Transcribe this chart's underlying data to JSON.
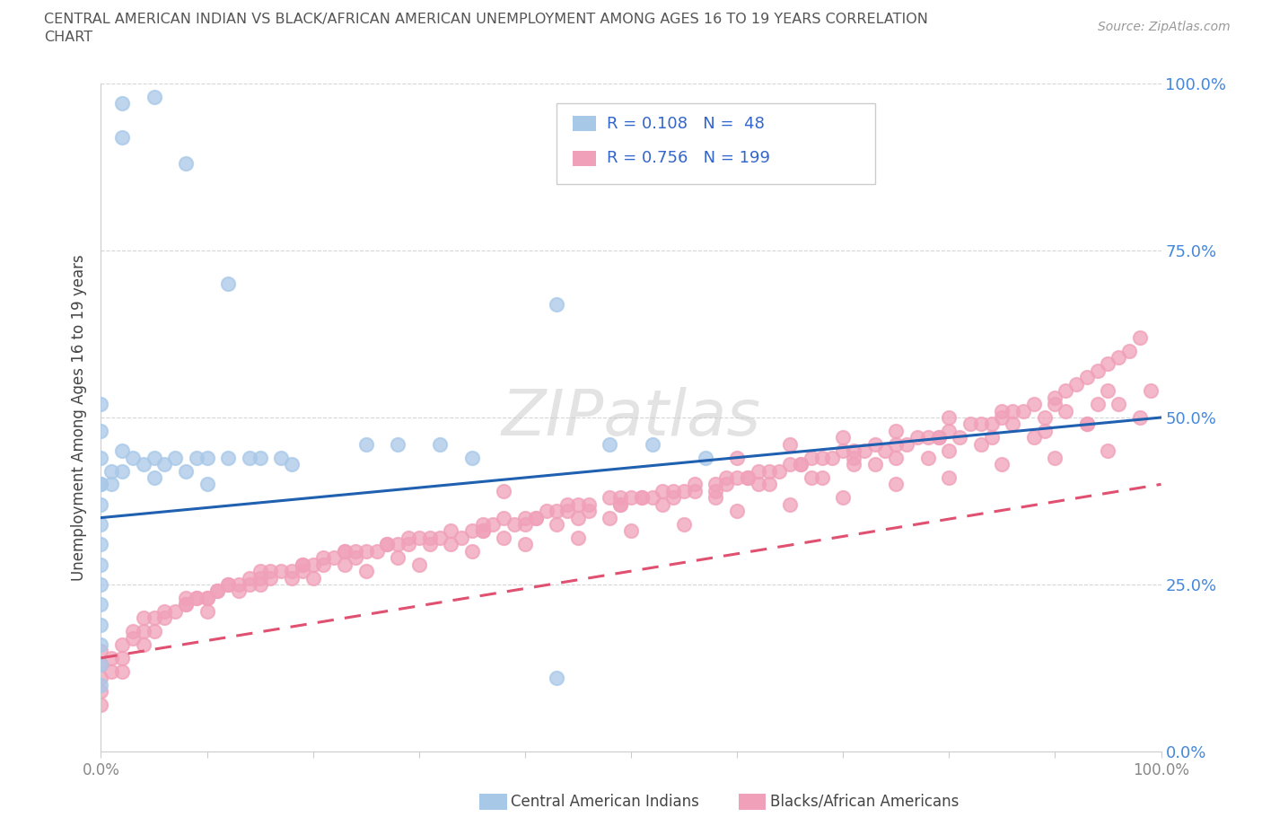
{
  "title_line1": "CENTRAL AMERICAN INDIAN VS BLACK/AFRICAN AMERICAN UNEMPLOYMENT AMONG AGES 16 TO 19 YEARS CORRELATION",
  "title_line2": "CHART",
  "source_text": "Source: ZipAtlas.com",
  "ylabel": "Unemployment Among Ages 16 to 19 years",
  "xlim": [
    0,
    1.0
  ],
  "ylim": [
    0,
    1.0
  ],
  "watermark_text": "ZIPatlas",
  "blue_color": "#a8c8e8",
  "pink_color": "#f0a0b8",
  "blue_line_color": "#2060b0",
  "pink_line_color": "#e05070",
  "blue_scatter_x": [
    0.02,
    0.02,
    0.05,
    0.08,
    0.0,
    0.0,
    0.0,
    0.0,
    0.0,
    0.0,
    0.0,
    0.0,
    0.0,
    0.0,
    0.0,
    0.0,
    0.0,
    0.0,
    0.0,
    0.01,
    0.01,
    0.02,
    0.02,
    0.03,
    0.04,
    0.05,
    0.05,
    0.06,
    0.07,
    0.08,
    0.09,
    0.1,
    0.1,
    0.12,
    0.14,
    0.15,
    0.17,
    0.18,
    0.25,
    0.28,
    0.32,
    0.35,
    0.43,
    0.48,
    0.52,
    0.43,
    0.12,
    0.57
  ],
  "blue_scatter_y": [
    0.97,
    0.92,
    0.98,
    0.88,
    0.52,
    0.48,
    0.44,
    0.4,
    0.37,
    0.34,
    0.31,
    0.28,
    0.25,
    0.22,
    0.19,
    0.16,
    0.13,
    0.1,
    0.4,
    0.42,
    0.4,
    0.45,
    0.42,
    0.44,
    0.43,
    0.44,
    0.41,
    0.43,
    0.44,
    0.42,
    0.44,
    0.44,
    0.4,
    0.44,
    0.44,
    0.44,
    0.44,
    0.43,
    0.46,
    0.46,
    0.46,
    0.44,
    0.11,
    0.46,
    0.46,
    0.67,
    0.7,
    0.44
  ],
  "pink_scatter_x": [
    0.0,
    0.0,
    0.0,
    0.0,
    0.0,
    0.01,
    0.01,
    0.02,
    0.02,
    0.02,
    0.03,
    0.04,
    0.04,
    0.05,
    0.06,
    0.07,
    0.08,
    0.09,
    0.1,
    0.1,
    0.11,
    0.12,
    0.13,
    0.14,
    0.15,
    0.16,
    0.17,
    0.18,
    0.19,
    0.2,
    0.21,
    0.22,
    0.23,
    0.24,
    0.25,
    0.27,
    0.28,
    0.29,
    0.3,
    0.31,
    0.33,
    0.35,
    0.36,
    0.37,
    0.38,
    0.4,
    0.41,
    0.42,
    0.43,
    0.44,
    0.45,
    0.46,
    0.48,
    0.49,
    0.5,
    0.51,
    0.52,
    0.53,
    0.55,
    0.56,
    0.58,
    0.59,
    0.6,
    0.61,
    0.62,
    0.63,
    0.65,
    0.66,
    0.67,
    0.68,
    0.7,
    0.71,
    0.72,
    0.73,
    0.75,
    0.77,
    0.78,
    0.79,
    0.8,
    0.82,
    0.83,
    0.85,
    0.86,
    0.87,
    0.88,
    0.9,
    0.91,
    0.92,
    0.93,
    0.94,
    0.95,
    0.96,
    0.97,
    0.98,
    0.38,
    0.05,
    0.08,
    0.12,
    0.15,
    0.19,
    0.23,
    0.27,
    0.32,
    0.36,
    0.4,
    0.45,
    0.49,
    0.54,
    0.58,
    0.62,
    0.67,
    0.71,
    0.75,
    0.8,
    0.84,
    0.89,
    0.93,
    0.6,
    0.65,
    0.7,
    0.75,
    0.8,
    0.85,
    0.9,
    0.95,
    0.1,
    0.15,
    0.2,
    0.25,
    0.3,
    0.35,
    0.4,
    0.45,
    0.5,
    0.55,
    0.6,
    0.65,
    0.7,
    0.75,
    0.8,
    0.85,
    0.9,
    0.95,
    0.03,
    0.08,
    0.13,
    0.18,
    0.23,
    0.28,
    0.33,
    0.38,
    0.43,
    0.48,
    0.53,
    0.58,
    0.63,
    0.68,
    0.73,
    0.78,
    0.83,
    0.88,
    0.93,
    0.98,
    0.06,
    0.11,
    0.16,
    0.21,
    0.26,
    0.31,
    0.36,
    0.41,
    0.46,
    0.51,
    0.56,
    0.61,
    0.66,
    0.71,
    0.76,
    0.81,
    0.86,
    0.91,
    0.96,
    0.04,
    0.09,
    0.14,
    0.19,
    0.24,
    0.29,
    0.34,
    0.39,
    0.44,
    0.49,
    0.54,
    0.59,
    0.64,
    0.69,
    0.74,
    0.79,
    0.84,
    0.89,
    0.94,
    0.99
  ],
  "pink_scatter_y": [
    0.15,
    0.13,
    0.11,
    0.09,
    0.07,
    0.14,
    0.12,
    0.16,
    0.14,
    0.12,
    0.17,
    0.18,
    0.16,
    0.18,
    0.2,
    0.21,
    0.22,
    0.23,
    0.23,
    0.21,
    0.24,
    0.25,
    0.25,
    0.26,
    0.26,
    0.27,
    0.27,
    0.27,
    0.28,
    0.28,
    0.29,
    0.29,
    0.3,
    0.3,
    0.3,
    0.31,
    0.31,
    0.32,
    0.32,
    0.32,
    0.33,
    0.33,
    0.34,
    0.34,
    0.35,
    0.35,
    0.35,
    0.36,
    0.36,
    0.37,
    0.37,
    0.37,
    0.38,
    0.38,
    0.38,
    0.38,
    0.38,
    0.39,
    0.39,
    0.4,
    0.4,
    0.41,
    0.41,
    0.41,
    0.42,
    0.42,
    0.43,
    0.43,
    0.44,
    0.44,
    0.45,
    0.45,
    0.45,
    0.46,
    0.46,
    0.47,
    0.47,
    0.47,
    0.48,
    0.49,
    0.49,
    0.5,
    0.51,
    0.51,
    0.52,
    0.53,
    0.54,
    0.55,
    0.56,
    0.57,
    0.58,
    0.59,
    0.6,
    0.62,
    0.39,
    0.2,
    0.23,
    0.25,
    0.27,
    0.28,
    0.3,
    0.31,
    0.32,
    0.33,
    0.34,
    0.35,
    0.37,
    0.38,
    0.39,
    0.4,
    0.41,
    0.43,
    0.44,
    0.45,
    0.47,
    0.48,
    0.49,
    0.44,
    0.46,
    0.47,
    0.48,
    0.5,
    0.51,
    0.52,
    0.54,
    0.23,
    0.25,
    0.26,
    0.27,
    0.28,
    0.3,
    0.31,
    0.32,
    0.33,
    0.34,
    0.36,
    0.37,
    0.38,
    0.4,
    0.41,
    0.43,
    0.44,
    0.45,
    0.18,
    0.22,
    0.24,
    0.26,
    0.28,
    0.29,
    0.31,
    0.32,
    0.34,
    0.35,
    0.37,
    0.38,
    0.4,
    0.41,
    0.43,
    0.44,
    0.46,
    0.47,
    0.49,
    0.5,
    0.21,
    0.24,
    0.26,
    0.28,
    0.3,
    0.31,
    0.33,
    0.35,
    0.36,
    0.38,
    0.39,
    0.41,
    0.43,
    0.44,
    0.46,
    0.47,
    0.49,
    0.51,
    0.52,
    0.2,
    0.23,
    0.25,
    0.27,
    0.29,
    0.31,
    0.32,
    0.34,
    0.36,
    0.37,
    0.39,
    0.4,
    0.42,
    0.44,
    0.45,
    0.47,
    0.49,
    0.5,
    0.52,
    0.54
  ],
  "blue_trend": [
    0.35,
    0.5
  ],
  "pink_trend": [
    0.14,
    0.4
  ],
  "right_ytick_labels": [
    "0.0%",
    "25.0%",
    "50.0%",
    "75.0%",
    "100.0%"
  ],
  "right_ytick_color": "#4488dd",
  "xtick_color": "#888888"
}
